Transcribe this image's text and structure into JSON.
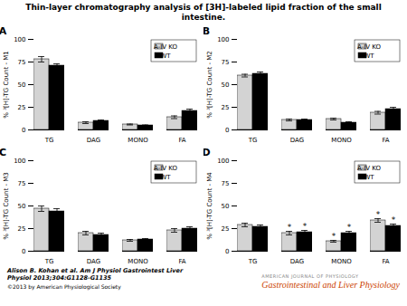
{
  "title": "Thin-layer chromatography analysis of [3H]-labeled lipid fraction of the small intestine.",
  "annotations": [
    {
      "text": "Alison B. Kohan et al. Am J Physiol Gastrointest Liver\nPhysiol 2013;304:G1128-G1135",
      "color": "#000000"
    },
    {
      "text": "©2013 by American Physiological Society",
      "color": "#000000"
    },
    {
      "text": "AMERICAN JOURNAL OF PHYSIOLOGY",
      "color": "#888888"
    },
    {
      "text": "Gastrointestinal and Liver Physiology",
      "color": "#cc4400"
    }
  ],
  "chart_data": [
    {
      "type": "bar",
      "title": "A",
      "ylabel": "% ³[H]-TG Count - M1",
      "categories": [
        "TG",
        "DAG",
        "MONO",
        "FA"
      ],
      "series": [
        {
          "name": "A-IV KO",
          "color": "#d3d3d3",
          "values": [
            78,
            8,
            6,
            14
          ],
          "errors": [
            3,
            1,
            0.5,
            1.5
          ]
        },
        {
          "name": "WT",
          "color": "#000000",
          "values": [
            71,
            10,
            5,
            21
          ],
          "errors": [
            2,
            1,
            0.5,
            2
          ]
        }
      ],
      "ylim": [
        0,
        100
      ],
      "yticks": [
        0,
        25,
        50,
        75,
        100
      ],
      "grid": false,
      "legend": "upper right"
    },
    {
      "type": "bar",
      "title": "B",
      "ylabel": "% ³[H]-TG Count - M2",
      "categories": [
        "TG",
        "DAG",
        "MONO",
        "FA"
      ],
      "series": [
        {
          "name": "A-IV KO",
          "color": "#d3d3d3",
          "values": [
            60,
            11,
            12,
            19
          ],
          "errors": [
            1.5,
            1,
            1,
            1.5
          ]
        },
        {
          "name": "WT",
          "color": "#000000",
          "values": [
            62,
            11,
            8,
            23
          ],
          "errors": [
            2,
            1,
            1,
            2
          ]
        }
      ],
      "ylim": [
        0,
        100
      ],
      "yticks": [
        0,
        25,
        50,
        75,
        100
      ],
      "grid": false,
      "legend": "upper right"
    },
    {
      "type": "bar",
      "title": "C",
      "ylabel": "% ³[H]-TG Count - M3",
      "categories": [
        "TG",
        "DAG",
        "MONO",
        "FA"
      ],
      "series": [
        {
          "name": "A-IV KO",
          "color": "#d3d3d3",
          "values": [
            47,
            20,
            12,
            23
          ],
          "errors": [
            3,
            2,
            1,
            2
          ]
        },
        {
          "name": "WT",
          "color": "#000000",
          "values": [
            44,
            18,
            13,
            25
          ],
          "errors": [
            3,
            2,
            1,
            2
          ]
        }
      ],
      "ylim": [
        0,
        100
      ],
      "yticks": [
        0,
        25,
        50,
        75,
        100
      ],
      "grid": false,
      "legend": "upper right"
    },
    {
      "type": "bar",
      "title": "D",
      "ylabel": "% ³[H]-TG Count - M4",
      "categories": [
        "TG",
        "DAG",
        "MONO",
        "FA"
      ],
      "series": [
        {
          "name": "A-IV KO",
          "color": "#d3d3d3",
          "values": [
            29,
            20,
            11,
            34
          ],
          "errors": [
            2,
            2,
            1,
            2
          ]
        },
        {
          "name": "WT",
          "color": "#000000",
          "values": [
            27,
            21,
            20,
            28
          ],
          "errors": [
            2,
            2,
            2,
            2
          ]
        }
      ],
      "ylim": [
        0,
        100
      ],
      "yticks": [
        0,
        25,
        50,
        75,
        100
      ],
      "grid": false,
      "legend": "upper right",
      "annotations": [
        {
          "text": "*",
          "category": "DAG",
          "series": "A-IV KO"
        },
        {
          "text": "*",
          "category": "DAG",
          "series": "WT"
        },
        {
          "text": "*",
          "category": "MONO",
          "series": "A-IV KO"
        },
        {
          "text": "*",
          "category": "MONO",
          "series": "WT"
        },
        {
          "text": "*",
          "category": "FA",
          "series": "A-IV KO"
        },
        {
          "text": "*",
          "category": "FA",
          "series": "WT"
        }
      ]
    }
  ]
}
